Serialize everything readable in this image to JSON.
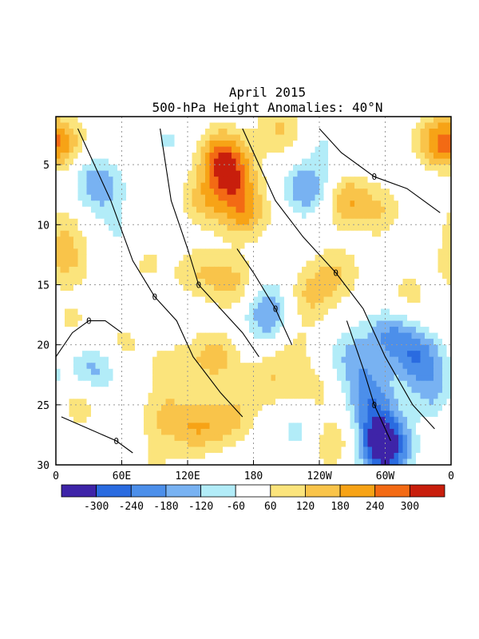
{
  "chart_data": {
    "type": "heatmap",
    "title": "April 2015",
    "subtitle": "500-hPa Height Anomalies: 40°N",
    "x_tick_labels": [
      "0",
      "60E",
      "120E",
      "180",
      "120W",
      "60W",
      "0"
    ],
    "x_tick_lon": [
      0,
      60,
      120,
      180,
      240,
      300,
      360
    ],
    "y_tick_labels": [
      "5",
      "10",
      "15",
      "20",
      "25",
      "30"
    ],
    "y_tick_day": [
      5,
      10,
      15,
      20,
      25,
      30
    ],
    "xlim": [
      0,
      360
    ],
    "ylim": [
      1,
      30
    ],
    "grid": true,
    "contour_label": "0",
    "colorbar": {
      "labels": [
        "-300",
        "-240",
        "-180",
        "-120",
        "-60",
        "60",
        "120",
        "180",
        "240",
        "300"
      ],
      "colors": [
        "#3e24a8",
        "#2a6be0",
        "#4c8fea",
        "#78b2f2",
        "#b2ecf8",
        "#ffffff",
        "#fbe47c",
        "#f9c44a",
        "#f7a316",
        "#f36a14",
        "#c81e0c"
      ]
    },
    "anomalies": [
      {
        "lon": 10,
        "day": 3.5,
        "value": 120
      },
      {
        "lon": 30,
        "day": 5,
        "value": -60
      },
      {
        "lon": 40,
        "day": 7,
        "value": -150
      },
      {
        "lon": 55,
        "day": 2,
        "value": 60
      },
      {
        "lon": 5,
        "day": 10,
        "value": 90
      },
      {
        "lon": 10,
        "day": 13,
        "value": 130
      },
      {
        "lon": 15,
        "day": 18,
        "value": 70
      },
      {
        "lon": 60,
        "day": 11,
        "value": -70
      },
      {
        "lon": 80,
        "day": 13,
        "value": 80
      },
      {
        "lon": 105,
        "day": 3,
        "value": -70
      },
      {
        "lon": 135,
        "day": 8,
        "value": 130
      },
      {
        "lon": 150,
        "day": 4,
        "value": 200
      },
      {
        "lon": 160,
        "day": 6,
        "value": 230
      },
      {
        "lon": 172,
        "day": 9,
        "value": 190
      },
      {
        "lon": 205,
        "day": 2,
        "value": 130
      },
      {
        "lon": 130,
        "day": 14,
        "value": 110
      },
      {
        "lon": 165,
        "day": 15,
        "value": 150
      },
      {
        "lon": 190,
        "day": 16,
        "value": -100
      },
      {
        "lon": 195,
        "day": 18,
        "value": -150
      },
      {
        "lon": 215,
        "day": 20,
        "value": 90
      },
      {
        "lon": 230,
        "day": 7,
        "value": -190
      },
      {
        "lon": 245,
        "day": 3,
        "value": -60
      },
      {
        "lon": 265,
        "day": 8,
        "value": 180
      },
      {
        "lon": 300,
        "day": 9,
        "value": 110
      },
      {
        "lon": 330,
        "day": 10,
        "value": -70
      },
      {
        "lon": 350,
        "day": 3,
        "value": 210
      },
      {
        "lon": 230,
        "day": 16,
        "value": 130
      },
      {
        "lon": 255,
        "day": 14,
        "value": 120
      },
      {
        "lon": 320,
        "day": 16,
        "value": 90
      },
      {
        "lon": 305,
        "day": 19,
        "value": -170
      },
      {
        "lon": 330,
        "day": 21,
        "value": -210
      },
      {
        "lon": 345,
        "day": 24,
        "value": -130
      },
      {
        "lon": 270,
        "day": 21,
        "value": -130
      },
      {
        "lon": 285,
        "day": 24,
        "value": -180
      },
      {
        "lon": 295,
        "day": 27,
        "value": -220
      },
      {
        "lon": 300,
        "day": 29,
        "value": -290
      },
      {
        "lon": 35,
        "day": 22,
        "value": -150
      },
      {
        "lon": 20,
        "day": 25,
        "value": 110
      },
      {
        "lon": 60,
        "day": 20,
        "value": 80
      },
      {
        "lon": 105,
        "day": 22,
        "value": 90
      },
      {
        "lon": 145,
        "day": 21,
        "value": 150
      },
      {
        "lon": 160,
        "day": 26,
        "value": 130
      },
      {
        "lon": 130,
        "day": 27,
        "value": 150
      },
      {
        "lon": 100,
        "day": 26,
        "value": 120
      },
      {
        "lon": 195,
        "day": 23,
        "value": 110
      },
      {
        "lon": 235,
        "day": 24,
        "value": 90
      },
      {
        "lon": 225,
        "day": 27,
        "value": -110
      },
      {
        "lon": 250,
        "day": 28,
        "value": 140
      },
      {
        "lon": 90,
        "day": 30,
        "value": 60
      },
      {
        "lon": 10,
        "day": 29,
        "value": -60
      }
    ],
    "zero_contours": [
      [
        [
          20,
          2
        ],
        [
          30,
          4
        ],
        [
          50,
          8
        ],
        [
          70,
          13
        ],
        [
          90,
          16
        ],
        [
          110,
          18
        ],
        [
          125,
          21
        ],
        [
          150,
          24
        ],
        [
          170,
          26
        ]
      ],
      [
        [
          95,
          2
        ],
        [
          105,
          8
        ],
        [
          120,
          12
        ],
        [
          130,
          15
        ],
        [
          150,
          17
        ],
        [
          170,
          19
        ],
        [
          185,
          21
        ]
      ],
      [
        [
          170,
          2
        ],
        [
          185,
          5
        ],
        [
          200,
          8
        ],
        [
          225,
          11
        ],
        [
          255,
          14
        ],
        [
          280,
          17
        ],
        [
          300,
          21
        ],
        [
          325,
          25
        ],
        [
          345,
          27
        ]
      ],
      [
        [
          240,
          2
        ],
        [
          260,
          4
        ],
        [
          290,
          6
        ],
        [
          320,
          7
        ],
        [
          350,
          9
        ]
      ],
      [
        [
          0,
          21
        ],
        [
          15,
          19
        ],
        [
          30,
          18
        ],
        [
          45,
          18
        ],
        [
          60,
          19
        ]
      ],
      [
        [
          165,
          12
        ],
        [
          180,
          14
        ],
        [
          200,
          17
        ],
        [
          215,
          20
        ]
      ],
      [
        [
          265,
          18
        ],
        [
          280,
          22
        ],
        [
          290,
          25
        ],
        [
          305,
          28
        ]
      ],
      [
        [
          5,
          26
        ],
        [
          30,
          27
        ],
        [
          55,
          28
        ],
        [
          70,
          29
        ]
      ]
    ]
  }
}
